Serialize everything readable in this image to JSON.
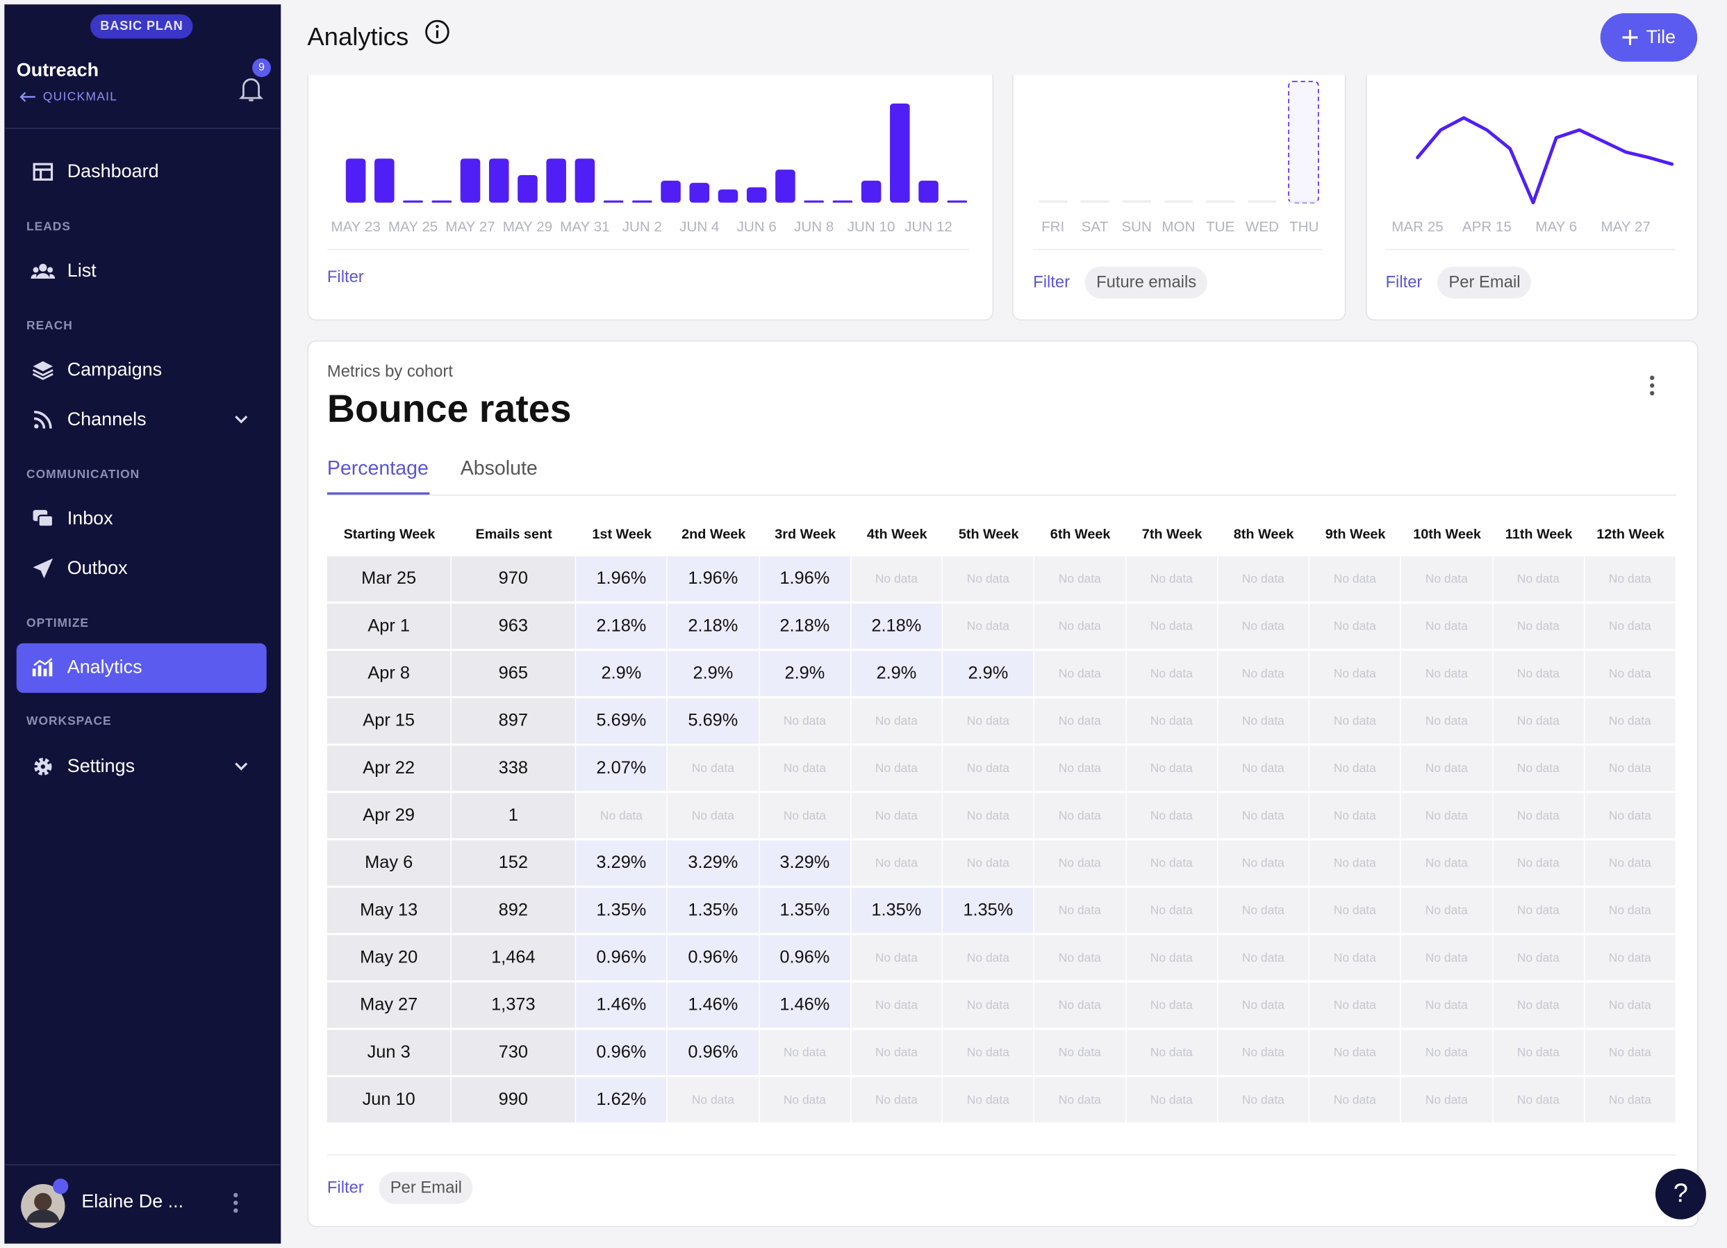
{
  "header": {
    "title": "Analytics",
    "button": "Tile"
  },
  "sidebar": {
    "plan": "BASIC PLAN",
    "workspace": "Outreach",
    "back_link": "QUICKMAIL",
    "notifications": "9",
    "sections": [
      "LEADS",
      "REACH",
      "COMMUNICATION",
      "OPTIMIZE",
      "WORKSPACE"
    ],
    "nav": [
      "Dashboard",
      "List",
      "Campaigns",
      "Channels",
      "Inbox",
      "Outbox",
      "Analytics",
      "Settings"
    ],
    "user": "Elaine De ..."
  },
  "tiles": [
    {
      "type": "bar",
      "color": "#4f1ff5",
      "categories": [
        "MAY 23",
        null,
        "MAY 25",
        null,
        "MAY 27",
        null,
        "MAY 29",
        null,
        "MAY 31",
        null,
        "JUN 2",
        null,
        "JUN 4",
        null,
        "JUN 6",
        null,
        "JUN 8",
        null,
        "JUN 10",
        null,
        "JUN 12",
        null
      ],
      "values": [
        4,
        4,
        0,
        0,
        4,
        4,
        2.5,
        4,
        4,
        0,
        0,
        2,
        1.8,
        1.2,
        1.4,
        3,
        0,
        0,
        2,
        9,
        2,
        0
      ],
      "filters": [
        "Filter"
      ]
    },
    {
      "type": "bar",
      "color": "#ececf1",
      "categories": [
        "FRI",
        "SAT",
        "SUN",
        "MON",
        "TUE",
        "WED",
        "THU"
      ],
      "values": [
        0,
        0,
        0,
        0,
        0,
        0,
        0
      ],
      "filters": [
        "Filter",
        "Future emails"
      ]
    },
    {
      "type": "line",
      "color": "#4f1ff5",
      "categories": [
        "MAR 25",
        null,
        null,
        "APR 15",
        null,
        null,
        "MAY 6",
        null,
        null,
        "MAY 27",
        null,
        null
      ],
      "values": [
        41,
        66,
        77,
        66,
        49,
        0,
        59,
        66,
        56,
        46,
        41,
        35
      ],
      "filters": [
        "Filter",
        "Per Email"
      ]
    }
  ],
  "cohort": {
    "eyebrow": "Metrics by cohort",
    "title": "Bounce rates",
    "tabs": [
      "Percentage",
      "Absolute"
    ],
    "table": {
      "headers": [
        "Starting Week",
        "Emails sent",
        "1st Week",
        "2nd Week",
        "3rd Week",
        "4th Week",
        "5th Week",
        "6th Week",
        "7th Week",
        "8th Week",
        "9th Week",
        "10th Week",
        "11th Week",
        "12th Week"
      ],
      "rows": [
        [
          "Mar 25",
          "970",
          "1.96%",
          "1.96%",
          "1.96%",
          "No data",
          "No data",
          "No data",
          "No data",
          "No data",
          "No data",
          "No data",
          "No data",
          "No data"
        ],
        [
          "Apr 1",
          "963",
          "2.18%",
          "2.18%",
          "2.18%",
          "2.18%",
          "No data",
          "No data",
          "No data",
          "No data",
          "No data",
          "No data",
          "No data",
          "No data"
        ],
        [
          "Apr 8",
          "965",
          "2.9%",
          "2.9%",
          "2.9%",
          "2.9%",
          "2.9%",
          "No data",
          "No data",
          "No data",
          "No data",
          "No data",
          "No data",
          "No data"
        ],
        [
          "Apr 15",
          "897",
          "5.69%",
          "5.69%",
          "No data",
          "No data",
          "No data",
          "No data",
          "No data",
          "No data",
          "No data",
          "No data",
          "No data",
          "No data"
        ],
        [
          "Apr 22",
          "338",
          "2.07%",
          "No data",
          "No data",
          "No data",
          "No data",
          "No data",
          "No data",
          "No data",
          "No data",
          "No data",
          "No data",
          "No data"
        ],
        [
          "Apr 29",
          "1",
          "No data",
          "No data",
          "No data",
          "No data",
          "No data",
          "No data",
          "No data",
          "No data",
          "No data",
          "No data",
          "No data",
          "No data"
        ],
        [
          "May 6",
          "152",
          "3.29%",
          "3.29%",
          "3.29%",
          "No data",
          "No data",
          "No data",
          "No data",
          "No data",
          "No data",
          "No data",
          "No data",
          "No data"
        ],
        [
          "May 13",
          "892",
          "1.35%",
          "1.35%",
          "1.35%",
          "1.35%",
          "1.35%",
          "No data",
          "No data",
          "No data",
          "No data",
          "No data",
          "No data",
          "No data"
        ],
        [
          "May 20",
          "1,464",
          "0.96%",
          "0.96%",
          "0.96%",
          "No data",
          "No data",
          "No data",
          "No data",
          "No data",
          "No data",
          "No data",
          "No data",
          "No data"
        ],
        [
          "May 27",
          "1,373",
          "1.46%",
          "1.46%",
          "1.46%",
          "No data",
          "No data",
          "No data",
          "No data",
          "No data",
          "No data",
          "No data",
          "No data",
          "No data"
        ],
        [
          "Jun 3",
          "730",
          "0.96%",
          "0.96%",
          "No data",
          "No data",
          "No data",
          "No data",
          "No data",
          "No data",
          "No data",
          "No data",
          "No data",
          "No data"
        ],
        [
          "Jun 10",
          "990",
          "1.62%",
          "No data",
          "No data",
          "No data",
          "No data",
          "No data",
          "No data",
          "No data",
          "No data",
          "No data",
          "No data",
          "No data"
        ]
      ]
    },
    "filters": [
      "Filter",
      "Per Email"
    ]
  },
  "help": "?"
}
